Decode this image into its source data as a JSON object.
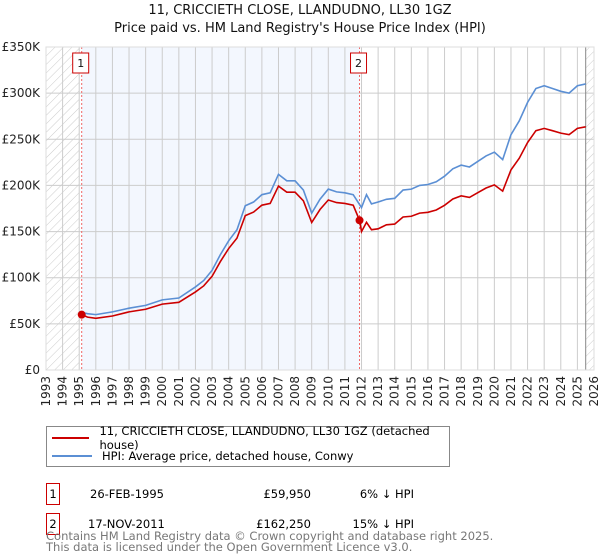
{
  "chart_data": {
    "type": "line",
    "title": "11, CRICCIETH CLOSE, LLANDUDNO, LL30 1GZ",
    "subtitle": "Price paid vs. HM Land Registry's House Price Index (HPI)",
    "xlim": [
      1993,
      2026
    ],
    "ylim": [
      0,
      350000
    ],
    "x_ticks": [
      "1993",
      "1994",
      "1995",
      "1996",
      "1997",
      "1998",
      "1999",
      "2000",
      "2001",
      "2002",
      "2003",
      "2004",
      "2005",
      "2006",
      "2007",
      "2008",
      "2009",
      "2010",
      "2011",
      "2012",
      "2013",
      "2014",
      "2015",
      "2016",
      "2017",
      "2018",
      "2019",
      "2020",
      "2021",
      "2022",
      "2023",
      "2024",
      "2025",
      "2026"
    ],
    "y_ticks": [
      {
        "v": 0,
        "label": "£0"
      },
      {
        "v": 50000,
        "label": "£50K"
      },
      {
        "v": 100000,
        "label": "£100K"
      },
      {
        "v": 150000,
        "label": "£150K"
      },
      {
        "v": 200000,
        "label": "£200K"
      },
      {
        "v": 250000,
        "label": "£250K"
      },
      {
        "v": 300000,
        "label": "£300K"
      },
      {
        "v": 350000,
        "label": "£350K"
      }
    ],
    "grid": true,
    "series": [
      {
        "name": "11, CRICCIETH CLOSE, LLANDUDNO, LL30 1GZ (detached house)",
        "color": "#cc0000",
        "x": [
          1995.15,
          1995.5,
          1996,
          1997,
          1998,
          1999,
          2000,
          2001,
          2002,
          2002.5,
          2003,
          2003.5,
          2004,
          2004.5,
          2005,
          2005.5,
          2006,
          2006.5,
          2007,
          2007.5,
          2008,
          2008.5,
          2009,
          2009.5,
          2010,
          2010.5,
          2011,
          2011.5,
          2011.88,
          2012,
          2012.3,
          2012.6,
          2013,
          2013.5,
          2014,
          2014.5,
          2015,
          2015.5,
          2016,
          2016.5,
          2017,
          2017.5,
          2018,
          2018.5,
          2019,
          2019.5,
          2020,
          2020.5,
          2021,
          2021.5,
          2022,
          2022.5,
          2023,
          2023.5,
          2024,
          2024.5,
          2025,
          2025.5
        ],
        "values": [
          59950,
          57300,
          56000,
          58500,
          63000,
          65800,
          71400,
          73300,
          84600,
          91200,
          101500,
          117500,
          131600,
          142900,
          167300,
          171100,
          178600,
          180500,
          199300,
          192700,
          192700,
          183300,
          159800,
          173900,
          184200,
          181400,
          180500,
          178600,
          162250,
          150000,
          160000,
          152000,
          153000,
          157300,
          158100,
          165800,
          166600,
          170000,
          170900,
          173400,
          178500,
          185300,
          188700,
          187000,
          192100,
          197200,
          200600,
          193800,
          216800,
          229500,
          246500,
          259300,
          261800,
          259300,
          256700,
          255000,
          261800,
          263500
        ]
      },
      {
        "name": "HPI: Average price, detached house, Conwy",
        "color": "#5b8fd4",
        "x": [
          1995,
          1995.5,
          1996,
          1997,
          1998,
          1999,
          2000,
          2001,
          2002,
          2002.5,
          2003,
          2003.5,
          2004,
          2004.5,
          2005,
          2005.5,
          2006,
          2006.5,
          2007,
          2007.5,
          2008,
          2008.5,
          2009,
          2009.5,
          2010,
          2010.5,
          2011,
          2011.5,
          2012,
          2012.3,
          2012.6,
          2013,
          2013.5,
          2014,
          2014.5,
          2015,
          2015.5,
          2016,
          2016.5,
          2017,
          2017.5,
          2018,
          2018.5,
          2019,
          2019.5,
          2020,
          2020.5,
          2021,
          2021.5,
          2022,
          2022.5,
          2023,
          2023.5,
          2024,
          2024.5,
          2025,
          2025.5
        ],
        "values": [
          63000,
          61000,
          60000,
          63000,
          67000,
          70000,
          76000,
          78000,
          90000,
          97000,
          108000,
          125000,
          140000,
          152000,
          178000,
          182000,
          190000,
          192000,
          212000,
          205000,
          205000,
          195000,
          170000,
          185000,
          196000,
          193000,
          192000,
          190000,
          176000,
          190000,
          180000,
          182000,
          185000,
          186000,
          195000,
          196000,
          200000,
          201000,
          204000,
          210000,
          218000,
          222000,
          220000,
          226000,
          232000,
          236000,
          228000,
          255000,
          270000,
          290000,
          305000,
          308000,
          305000,
          302000,
          300000,
          308000,
          310000
        ]
      }
    ],
    "sales": [
      {
        "n": "1",
        "x": 1995.15,
        "value": 59950
      },
      {
        "n": "2",
        "x": 2011.88,
        "value": 162250
      }
    ],
    "owned_period": [
      1995.15,
      2011.88
    ],
    "hatched": [
      [
        1993,
        1995
      ],
      [
        2025.5,
        2026
      ]
    ]
  },
  "table": [
    {
      "n": "1",
      "date": "26-FEB-1995",
      "price": "£59,950",
      "delta": "6% ↓ HPI"
    },
    {
      "n": "2",
      "date": "17-NOV-2011",
      "price": "£162,250",
      "delta": "15% ↓ HPI"
    }
  ],
  "footer": [
    "Contains HM Land Registry data © Crown copyright and database right 2025.",
    "This data is licensed under the Open Government Licence v3.0."
  ]
}
